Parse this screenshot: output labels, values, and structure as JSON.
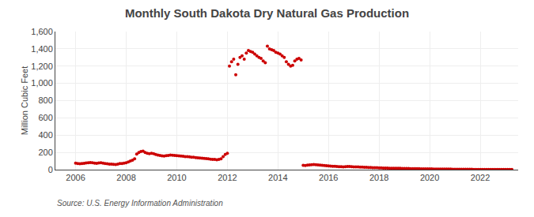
{
  "chart_data": {
    "type": "scatter",
    "title": "Monthly South Dakota Dry Natural Gas Production",
    "ylabel": "Million Cubic Feet",
    "annotations": [
      "Source: U.S. Energy Information Administration"
    ],
    "color": "#cc0000",
    "grid": true,
    "xlim": [
      2005.2,
      2023.5
    ],
    "xticks": [
      2006,
      2008,
      2010,
      2012,
      2014,
      2016,
      2018,
      2020,
      2022
    ],
    "ylim": [
      0,
      1600
    ],
    "yticks": [
      0,
      200,
      400,
      600,
      800,
      {
        "value": 1000,
        "label": "1,000"
      },
      {
        "value": 1200,
        "label": "1,200"
      },
      {
        "value": 1400,
        "label": "1,400"
      },
      {
        "value": 1600,
        "label": "1,600"
      }
    ],
    "x": [
      2006.0,
      2006.083,
      2006.167,
      2006.25,
      2006.333,
      2006.417,
      2006.5,
      2006.583,
      2006.667,
      2006.75,
      2006.833,
      2006.917,
      2007.0,
      2007.083,
      2007.167,
      2007.25,
      2007.333,
      2007.417,
      2007.5,
      2007.583,
      2007.667,
      2007.75,
      2007.833,
      2007.917,
      2008.0,
      2008.083,
      2008.167,
      2008.25,
      2008.333,
      2008.417,
      2008.5,
      2008.583,
      2008.667,
      2008.75,
      2008.833,
      2008.917,
      2009.0,
      2009.083,
      2009.167,
      2009.25,
      2009.333,
      2009.417,
      2009.5,
      2009.583,
      2009.667,
      2009.75,
      2009.833,
      2009.917,
      2010.0,
      2010.083,
      2010.167,
      2010.25,
      2010.333,
      2010.417,
      2010.5,
      2010.583,
      2010.667,
      2010.75,
      2010.833,
      2010.917,
      2011.0,
      2011.083,
      2011.167,
      2011.25,
      2011.333,
      2011.417,
      2011.5,
      2011.583,
      2011.667,
      2011.75,
      2011.833,
      2011.917,
      2012.0,
      2012.083,
      2012.167,
      2012.25,
      2012.333,
      2012.417,
      2012.5,
      2012.583,
      2012.667,
      2012.75,
      2012.833,
      2012.917,
      2013.0,
      2013.083,
      2013.167,
      2013.25,
      2013.333,
      2013.417,
      2013.5,
      2013.583,
      2013.667,
      2013.75,
      2013.833,
      2013.917,
      2014.0,
      2014.083,
      2014.167,
      2014.25,
      2014.333,
      2014.417,
      2014.5,
      2014.583,
      2014.667,
      2014.75,
      2014.833,
      2014.917,
      2015.0,
      2015.083,
      2015.167,
      2015.25,
      2015.333,
      2015.417,
      2015.5,
      2015.583,
      2015.667,
      2015.75,
      2015.833,
      2015.917,
      2016.0,
      2016.083,
      2016.167,
      2016.25,
      2016.333,
      2016.417,
      2016.5,
      2016.583,
      2016.667,
      2016.75,
      2016.833,
      2016.917,
      2017.0,
      2017.083,
      2017.167,
      2017.25,
      2017.333,
      2017.417,
      2017.5,
      2017.583,
      2017.667,
      2017.75,
      2017.833,
      2017.917,
      2018.0,
      2018.083,
      2018.167,
      2018.25,
      2018.333,
      2018.417,
      2018.5,
      2018.583,
      2018.667,
      2018.75,
      2018.833,
      2018.917,
      2019.0,
      2019.083,
      2019.167,
      2019.25,
      2019.333,
      2019.417,
      2019.5,
      2019.583,
      2019.667,
      2019.75,
      2019.833,
      2019.917,
      2020.0,
      2020.083,
      2020.167,
      2020.25,
      2020.333,
      2020.417,
      2020.5,
      2020.583,
      2020.667,
      2020.75,
      2020.833,
      2020.917,
      2021.0,
      2021.083,
      2021.167,
      2021.25,
      2021.333,
      2021.417,
      2021.5,
      2021.583,
      2021.667,
      2021.75,
      2021.833,
      2021.917,
      2022.0,
      2022.083,
      2022.167,
      2022.25,
      2022.333,
      2022.417,
      2022.5,
      2022.583,
      2022.667,
      2022.75,
      2022.833,
      2022.917,
      2023.0,
      2023.083,
      2023.167,
      2023.25
    ],
    "values": [
      75,
      72,
      68,
      70,
      73,
      78,
      80,
      82,
      79,
      76,
      74,
      77,
      79,
      76,
      72,
      68,
      65,
      63,
      62,
      60,
      65,
      70,
      72,
      75,
      80,
      90,
      100,
      110,
      125,
      180,
      200,
      210,
      215,
      200,
      190,
      185,
      190,
      185,
      175,
      170,
      165,
      160,
      158,
      162,
      165,
      170,
      168,
      165,
      163,
      160,
      158,
      155,
      152,
      150,
      148,
      145,
      143,
      140,
      138,
      135,
      133,
      130,
      128,
      125,
      122,
      120,
      118,
      115,
      118,
      125,
      150,
      175,
      190,
      1200,
      1250,
      1280,
      1100,
      1220,
      1300,
      1320,
      1280,
      1350,
      1380,
      1370,
      1360,
      1340,
      1320,
      1300,
      1290,
      1260,
      1240,
      1430,
      1400,
      1390,
      1380,
      1360,
      1350,
      1340,
      1320,
      1300,
      1250,
      1220,
      1200,
      1210,
      1260,
      1280,
      1290,
      1270,
      50,
      48,
      52,
      55,
      58,
      60,
      58,
      55,
      52,
      50,
      48,
      45,
      43,
      42,
      40,
      38,
      36,
      35,
      34,
      33,
      35,
      37,
      36,
      34,
      33,
      32,
      31,
      30,
      29,
      28,
      27,
      26,
      25,
      24,
      23,
      22,
      21,
      20,
      19,
      18,
      18,
      17,
      17,
      16,
      16,
      15,
      15,
      14,
      14,
      13,
      13,
      12,
      12,
      11,
      11,
      11,
      10,
      10,
      10,
      9,
      9,
      9,
      8,
      8,
      8,
      7,
      7,
      7,
      6,
      6,
      6,
      5,
      5,
      5,
      5,
      4,
      4,
      4,
      4,
      4,
      4,
      3,
      3,
      3,
      3,
      3,
      3,
      3,
      3,
      3,
      3,
      3,
      3,
      3,
      3,
      3,
      3,
      3,
      3,
      3
    ]
  }
}
